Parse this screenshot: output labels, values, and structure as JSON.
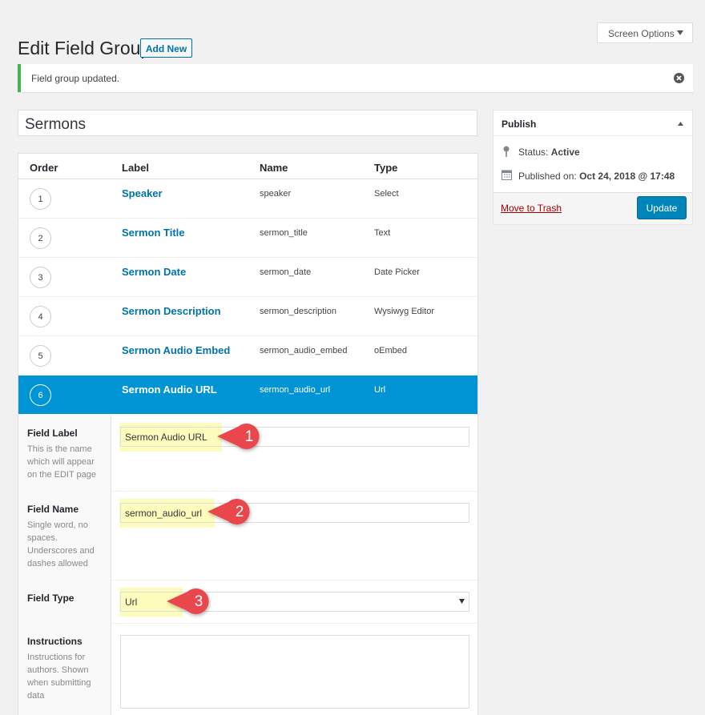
{
  "screen_options": "Screen Options",
  "header": {
    "title": "Edit Field Group",
    "add_new": "Add New"
  },
  "notice": "Field group updated.",
  "group_title": "Sermons",
  "fields_table": {
    "columns": [
      "Order",
      "Label",
      "Name",
      "Type"
    ],
    "rows": [
      {
        "order": 1,
        "label": "Speaker",
        "name": "speaker",
        "type": "Select"
      },
      {
        "order": 2,
        "label": "Sermon Title",
        "name": "sermon_title",
        "type": "Text"
      },
      {
        "order": 3,
        "label": "Sermon Date",
        "name": "sermon_date",
        "type": "Date Picker"
      },
      {
        "order": 4,
        "label": "Sermon Description",
        "name": "sermon_description",
        "type": "Wysiwyg Editor"
      },
      {
        "order": 5,
        "label": "Sermon Audio Embed",
        "name": "sermon_audio_embed",
        "type": "oEmbed"
      },
      {
        "order": 6,
        "label": "Sermon Audio URL",
        "name": "sermon_audio_url",
        "type": "Url"
      }
    ]
  },
  "field_settings": [
    {
      "label": "Field Label",
      "description": "This is the name which will appear on the EDIT page",
      "value": "Sermon Audio URL",
      "callout": 1
    },
    {
      "label": "Field Name",
      "description": "Single word, no spaces. Underscores and dashes allowed",
      "value": "sermon_audio_url",
      "callout": 2
    },
    {
      "label": "Field Type",
      "description": "",
      "value": "Url",
      "callout": 3
    },
    {
      "label": "Instructions",
      "description": "Instructions for authors. Shown when submitting data",
      "value": ""
    }
  ],
  "publish": {
    "title": "Publish",
    "status_label": "Status:",
    "status": "Active",
    "published_label": "Published on:",
    "published": "Oct 24, 2018 @ 17:48",
    "trash": "Move to Trash",
    "update": "Update"
  }
}
